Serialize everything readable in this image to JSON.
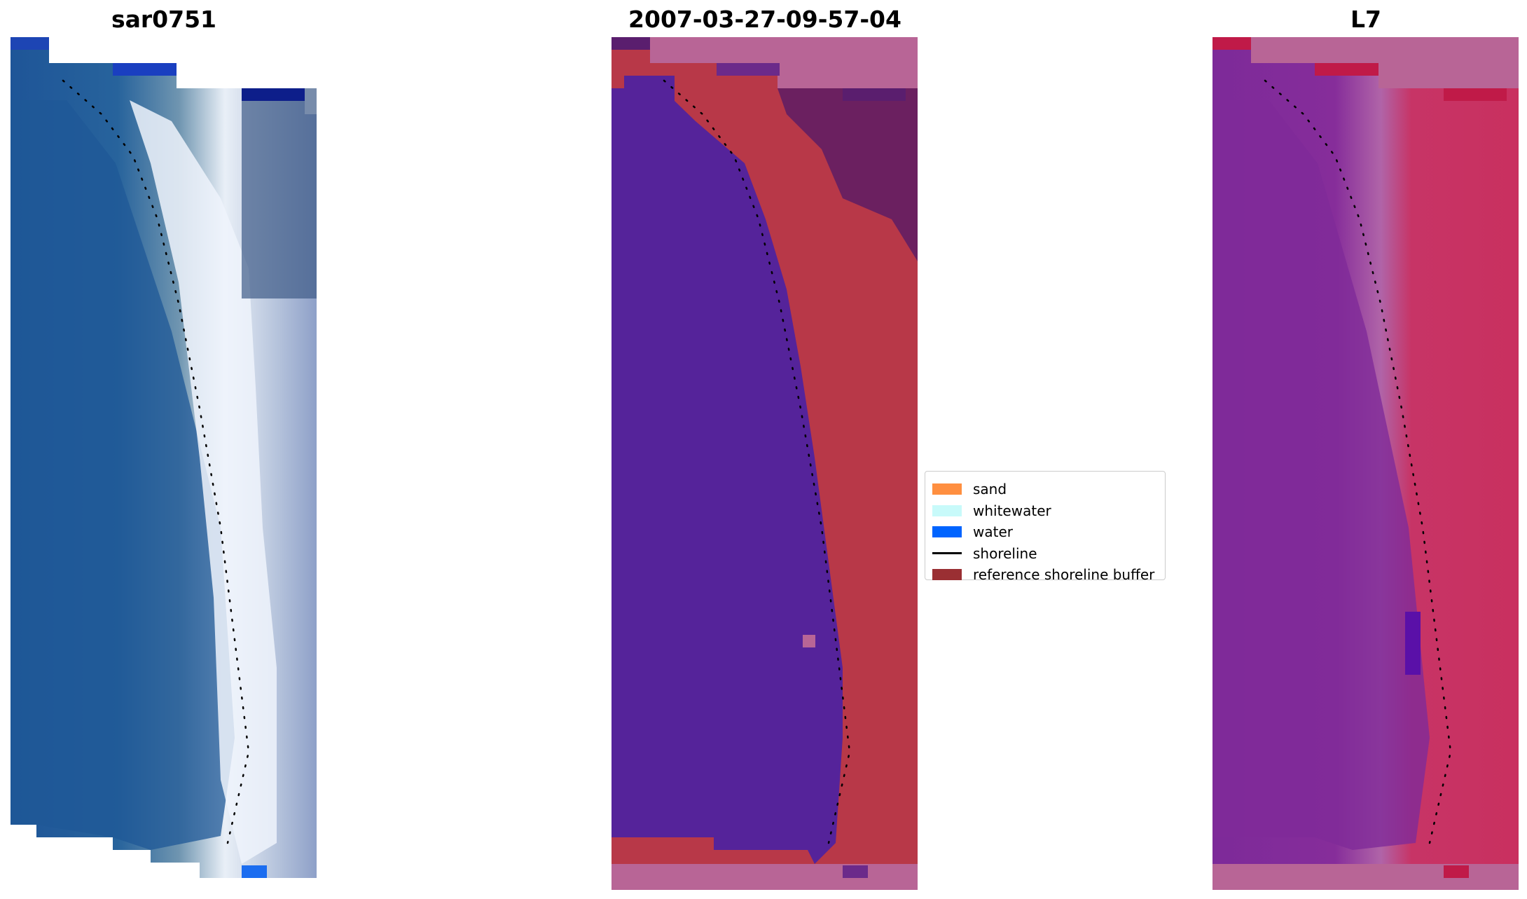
{
  "panels": {
    "left": {
      "title": "sar0751"
    },
    "middle": {
      "title": "2007-03-27-09-57-04"
    },
    "right": {
      "title": "L7"
    }
  },
  "legend": {
    "items": [
      {
        "label": "sand",
        "kind": "patch",
        "color": "#ff8f40"
      },
      {
        "label": "whitewater",
        "kind": "patch",
        "color": "#c8fafa"
      },
      {
        "label": "water",
        "kind": "patch",
        "color": "#0064ff"
      },
      {
        "label": "shoreline",
        "kind": "line",
        "color": "#000000"
      },
      {
        "label": "reference shoreline buffer",
        "kind": "patch",
        "color": "#9a2f33"
      }
    ]
  },
  "colors": {
    "water_class": "#55239a",
    "buffer": "#b83848",
    "nodata": "#b86596",
    "ocean_rgb": "#215b99",
    "surf_rgb": "#dfe8f5",
    "l7_water": "#7f2a98",
    "l7_land": "#c73466"
  }
}
